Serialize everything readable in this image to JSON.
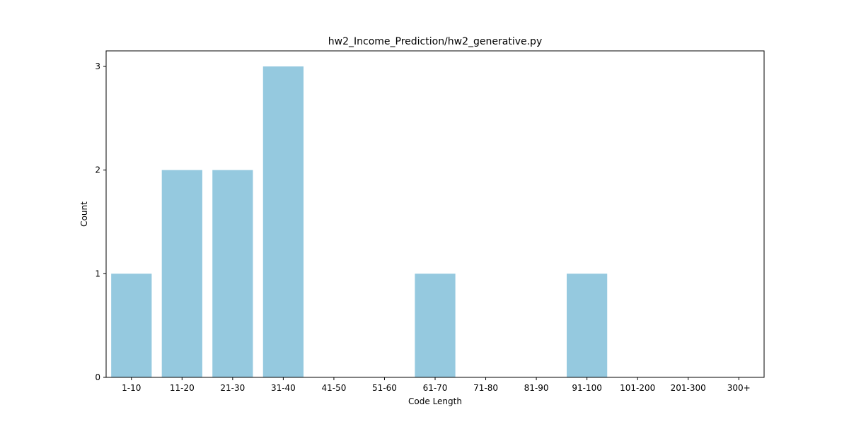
{
  "chart_data": {
    "type": "bar",
    "title": "hw2_Income_Prediction/hw2_generative.py",
    "xlabel": "Code Length",
    "ylabel": "Count",
    "categories": [
      "1-10",
      "11-20",
      "21-30",
      "31-40",
      "41-50",
      "51-60",
      "61-70",
      "71-80",
      "81-90",
      "91-100",
      "101-200",
      "201-300",
      "300+"
    ],
    "values": [
      1,
      2,
      2,
      3,
      0,
      0,
      1,
      0,
      0,
      1,
      0,
      0,
      0
    ],
    "yticks": [
      "0",
      "1",
      "2",
      "3"
    ],
    "ylim": [
      0,
      3.15
    ],
    "grid": false,
    "bar_color": "#95c9df"
  }
}
